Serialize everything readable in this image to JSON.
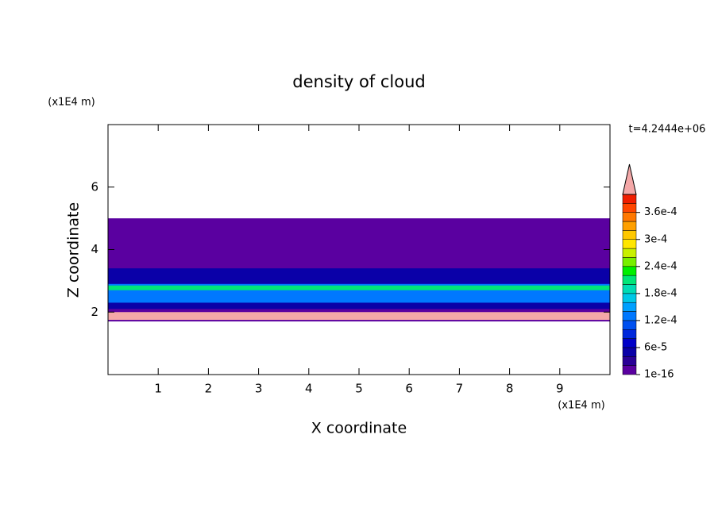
{
  "chart_data": {
    "type": "contour",
    "title": "density of cloud",
    "x_label": "X coordinate",
    "y_label": "Z coordinate",
    "x_unit": "(x1E4 m)",
    "y_unit": "(x1E4 m)",
    "annotation": "t=4.2444e+06",
    "xlim": [
      0,
      10
    ],
    "ylim": [
      0,
      8
    ],
    "xticks": [
      1,
      2,
      3,
      4,
      5,
      6,
      7,
      8,
      9
    ],
    "yticks": [
      2,
      4,
      6
    ],
    "layers": [
      {
        "z": [
          1.7,
          5.0
        ],
        "value": 1e-05
      },
      {
        "z": [
          2.1,
          3.4
        ],
        "value": 4e-05
      },
      {
        "z": [
          2.3,
          2.9
        ],
        "value": 0.00012
      },
      {
        "z": [
          2.7,
          2.85
        ],
        "value": 0.0002
      },
      {
        "z": [
          1.75,
          2.0
        ],
        "value": 0.00041
      }
    ],
    "colorbar": {
      "levels": [
        1e-16,
        2e-05,
        4e-05,
        6e-05,
        8e-05,
        0.0001,
        0.00012,
        0.00014,
        0.00016,
        0.00018,
        0.0002,
        0.00022,
        0.00024,
        0.00026,
        0.00028,
        0.0003,
        0.00032,
        0.00034,
        0.00036,
        0.00038,
        0.0004
      ],
      "colors": [
        "#5a00a0",
        "#2a0096",
        "#0a00a8",
        "#0000c8",
        "#0028dc",
        "#0050f0",
        "#0078ff",
        "#00a0ff",
        "#00c8e6",
        "#00dcb4",
        "#00e678",
        "#00f000",
        "#78f000",
        "#c8f000",
        "#ffe600",
        "#ffc800",
        "#ffa000",
        "#ff7800",
        "#ff4600",
        "#f01e00"
      ],
      "extend_color": "#f4a8a8",
      "ticks": [
        {
          "value": 1e-16,
          "label": "1e-16"
        },
        {
          "value": 6e-05,
          "label": "6e-5"
        },
        {
          "value": 0.00012,
          "label": "1.2e-4"
        },
        {
          "value": 0.00018,
          "label": "1.8e-4"
        },
        {
          "value": 0.00024,
          "label": "2.4e-4"
        },
        {
          "value": 0.0003,
          "label": "3e-4"
        },
        {
          "value": 0.00036,
          "label": "3.6e-4"
        }
      ]
    }
  }
}
